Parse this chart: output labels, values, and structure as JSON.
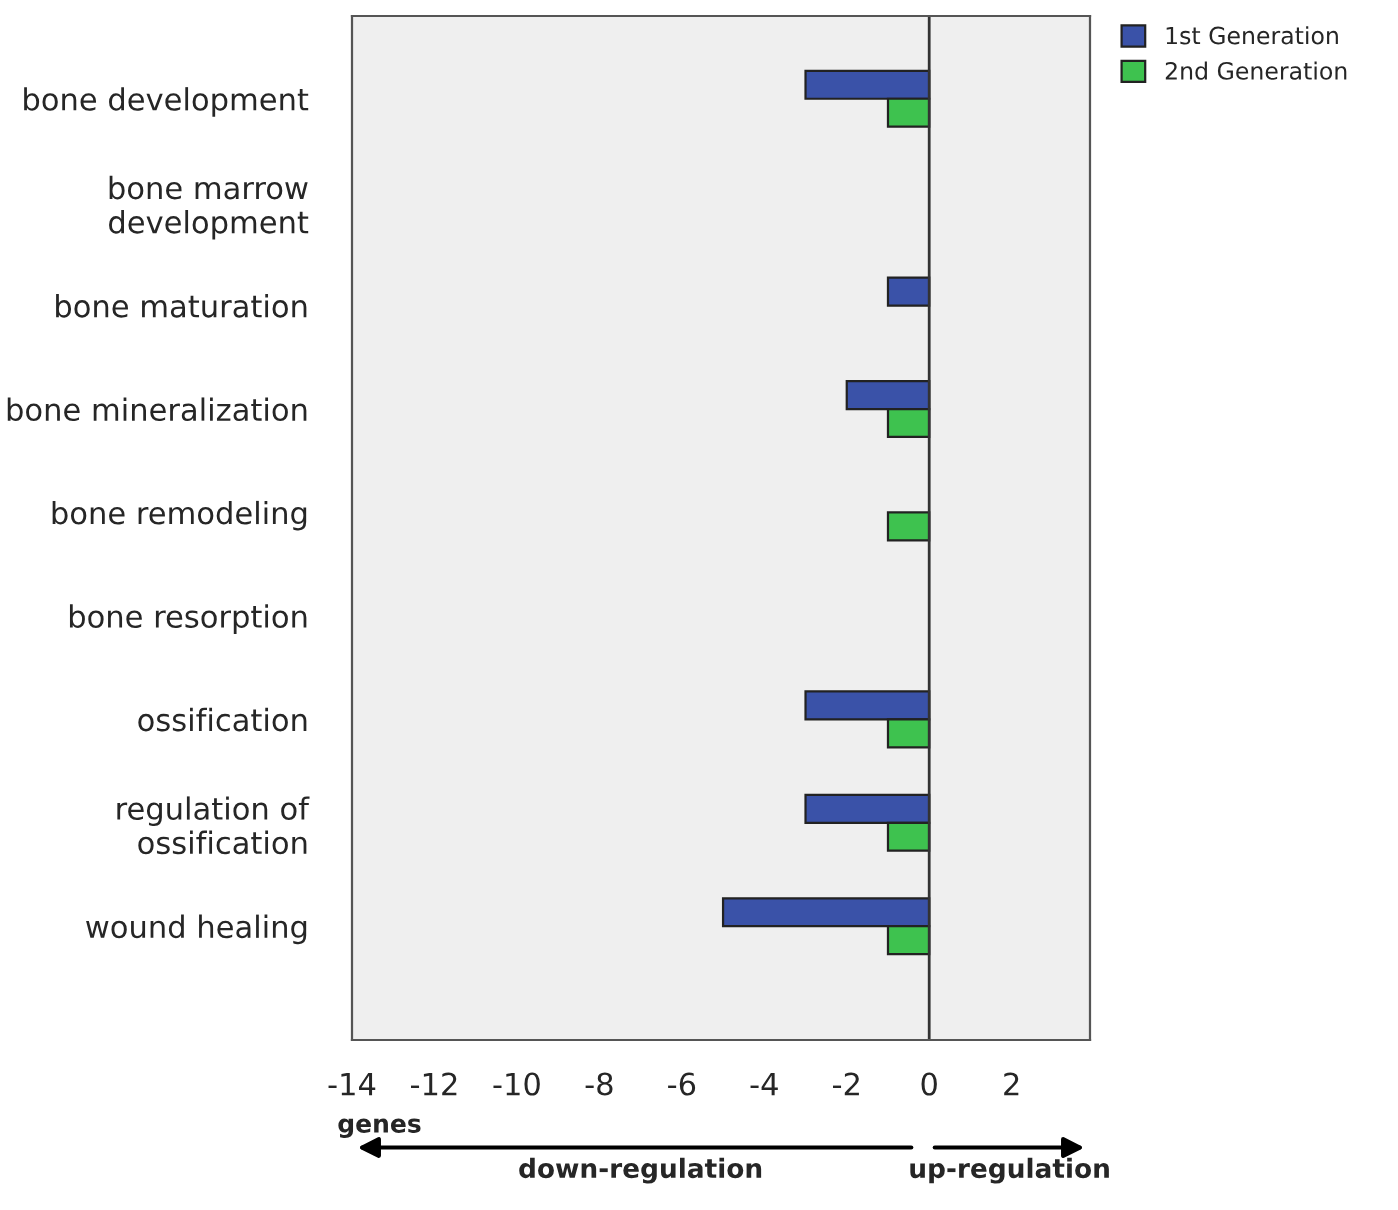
{
  "chart_data": {
    "type": "bar",
    "orientation": "horizontal",
    "categories": [
      "bone development",
      "bone marrow\ndevelopment",
      "bone maturation",
      "bone mineralization",
      "bone remodeling",
      "bone resorption",
      "ossification",
      "regulation of\nossification",
      "wound healing"
    ],
    "series": [
      {
        "name": "1st Generation",
        "color": "#3a52a8",
        "values": [
          -3,
          null,
          -1,
          -2,
          null,
          null,
          -3,
          -3,
          -5
        ]
      },
      {
        "name": "2nd Generation",
        "color": "#3ec24f",
        "values": [
          -1,
          null,
          null,
          -1,
          -1,
          null,
          -1,
          -1,
          -1
        ]
      }
    ],
    "xlim": [
      -14,
      3.9
    ],
    "xticks": [
      -14,
      -12,
      -10,
      -8,
      -6,
      -4,
      -2,
      0,
      2
    ],
    "xlabel": "genes",
    "ref_lines": [
      {
        "axis": "x",
        "value": 0,
        "color": "#333333"
      }
    ],
    "annotations": [
      "down-regulation",
      "up-regulation"
    ],
    "legend": "top right",
    "grid": false
  }
}
